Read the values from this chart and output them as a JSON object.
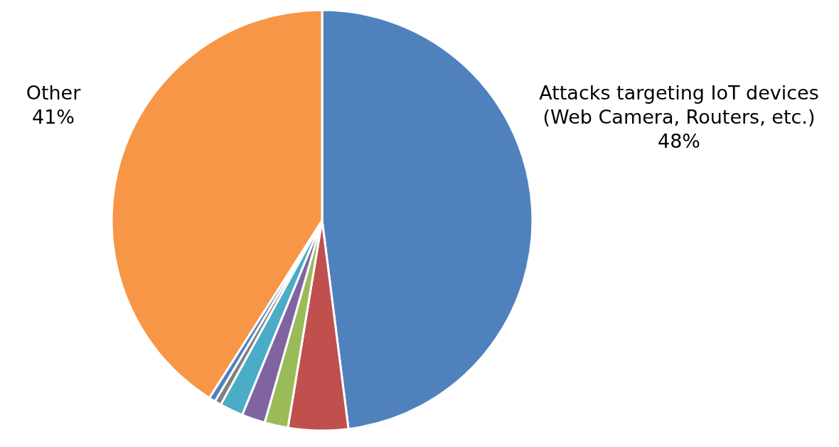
{
  "chart_data": {
    "type": "pie",
    "categories": [
      "Attacks targeting IoT devices (Web Camera, Routers, etc.)",
      null,
      null,
      null,
      null,
      null,
      null,
      "Other"
    ],
    "values": [
      48,
      4.6,
      1.8,
      1.8,
      1.8,
      0.5,
      0.5,
      41
    ],
    "colors": [
      "#4f81bd",
      "#c0504d",
      "#9bbb59",
      "#8064a2",
      "#4bacc6",
      "#7f7f7f",
      "#4f81bd",
      "#f79646"
    ],
    "value_labels": [
      "48%",
      null,
      null,
      null,
      null,
      null,
      null,
      "41%"
    ]
  }
}
